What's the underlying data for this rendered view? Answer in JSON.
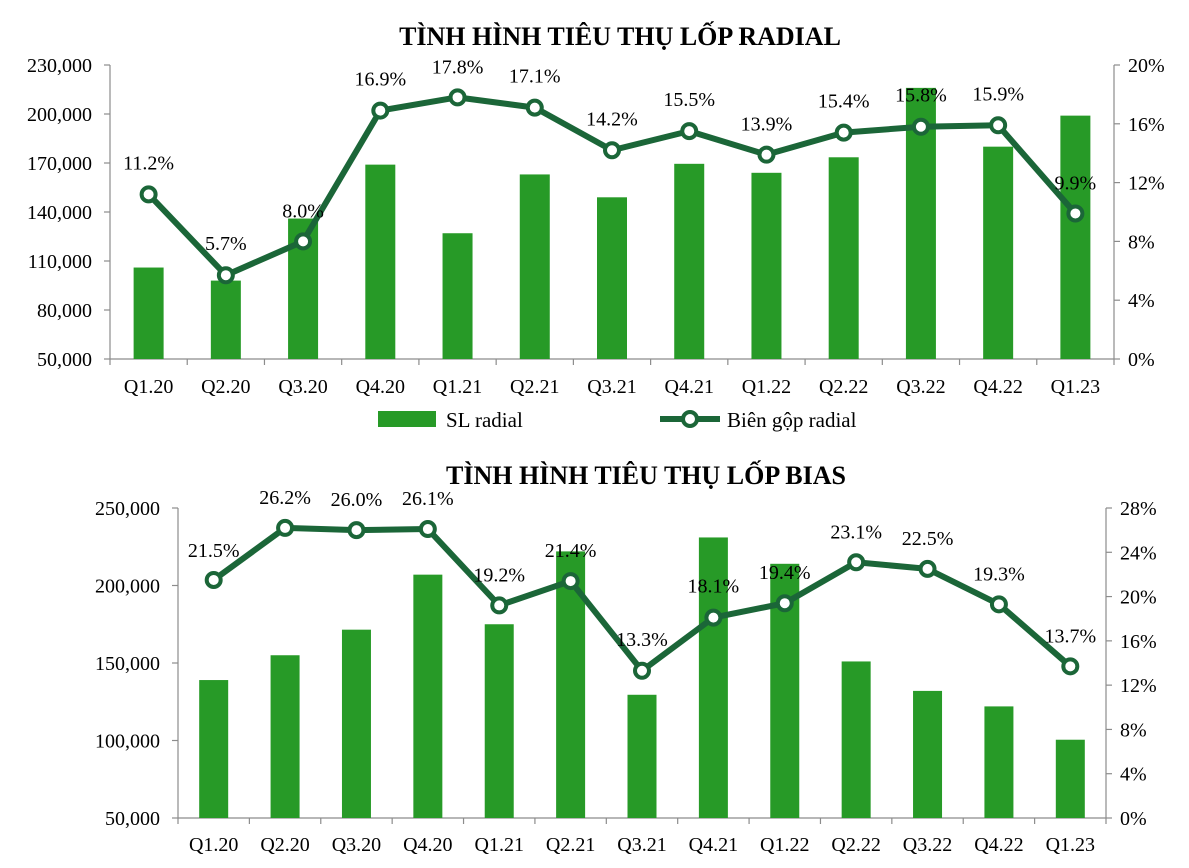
{
  "chart_data": [
    {
      "type": "bar+line",
      "title": "TÌNH HÌNH TIÊU THỤ LỐP RADIAL",
      "categories": [
        "Q1.20",
        "Q2.20",
        "Q3.20",
        "Q4.20",
        "Q1.21",
        "Q2.21",
        "Q3.21",
        "Q4.21",
        "Q1.22",
        "Q2.22",
        "Q3.22",
        "Q4.22",
        "Q1.23"
      ],
      "series": [
        {
          "name": "SL radial",
          "kind": "bar",
          "axis": "left",
          "values": [
            106000,
            98000,
            136000,
            169000,
            127000,
            163000,
            149000,
            169500,
            164000,
            173500,
            216000,
            180000,
            199000
          ]
        },
        {
          "name": "Biên gộp radial",
          "kind": "line",
          "axis": "right",
          "values": [
            11.2,
            5.7,
            8.0,
            16.9,
            17.8,
            17.1,
            14.2,
            15.5,
            13.9,
            15.4,
            15.8,
            15.9,
            9.9
          ],
          "labels": [
            "11.2%",
            "5.7%",
            "8.0%",
            "16.9%",
            "17.8%",
            "17.1%",
            "14.2%",
            "15.5%",
            "13.9%",
            "15.4%",
            "15.8%",
            "15.9%",
            "9.9%"
          ]
        }
      ],
      "left_axis": {
        "min": 50000,
        "max": 230000,
        "ticks": [
          50000,
          80000,
          110000,
          140000,
          170000,
          200000,
          230000
        ],
        "tick_labels": [
          "50,000",
          "80,000",
          "110,000",
          "140,000",
          "170,000",
          "200,000",
          "230,000"
        ]
      },
      "right_axis": {
        "min": 0,
        "max": 20,
        "ticks": [
          0,
          4,
          8,
          12,
          16,
          20
        ],
        "tick_labels": [
          "0%",
          "4%",
          "8%",
          "12%",
          "16%",
          "20%"
        ]
      },
      "legend": {
        "placement": "bottom",
        "items": [
          "SL radial",
          "Biên gộp radial"
        ]
      },
      "grid": false
    },
    {
      "type": "bar+line",
      "title": "TÌNH HÌNH TIÊU THỤ LỐP BIAS",
      "categories": [
        "Q1.20",
        "Q2.20",
        "Q3.20",
        "Q4.20",
        "Q1.21",
        "Q2.21",
        "Q3.21",
        "Q4.21",
        "Q1.22",
        "Q2.22",
        "Q3.22",
        "Q4.22",
        "Q1.23"
      ],
      "series": [
        {
          "kind": "bar",
          "axis": "left",
          "values": [
            139000,
            155000,
            171500,
            207000,
            175000,
            222000,
            129500,
            231000,
            214000,
            151000,
            132000,
            122000,
            100500
          ]
        },
        {
          "kind": "line",
          "axis": "right",
          "values": [
            21.5,
            26.2,
            26.0,
            26.1,
            19.2,
            21.4,
            13.3,
            18.1,
            19.4,
            23.1,
            22.5,
            19.3,
            13.7
          ],
          "labels": [
            "21.5%",
            "26.2%",
            "26.0%",
            "26.1%",
            "19.2%",
            "21.4%",
            "13.3%",
            "18.1%",
            "19.4%",
            "23.1%",
            "22.5%",
            "19.3%",
            "13.7%"
          ]
        }
      ],
      "left_axis": {
        "min": 50000,
        "max": 250000,
        "ticks": [
          50000,
          100000,
          150000,
          200000,
          250000
        ],
        "tick_labels": [
          "50,000",
          "100,000",
          "150,000",
          "200,000",
          "250,000"
        ]
      },
      "right_axis": {
        "min": 0,
        "max": 28,
        "ticks": [
          0,
          4,
          8,
          12,
          16,
          20,
          24,
          28
        ],
        "tick_labels": [
          "0%",
          "4%",
          "8%",
          "12%",
          "16%",
          "20%",
          "24%",
          "28%"
        ]
      },
      "grid": false
    }
  ],
  "colors": {
    "bar": "#279A27",
    "line": "#1B6638",
    "axis": "#8C8C8C"
  }
}
